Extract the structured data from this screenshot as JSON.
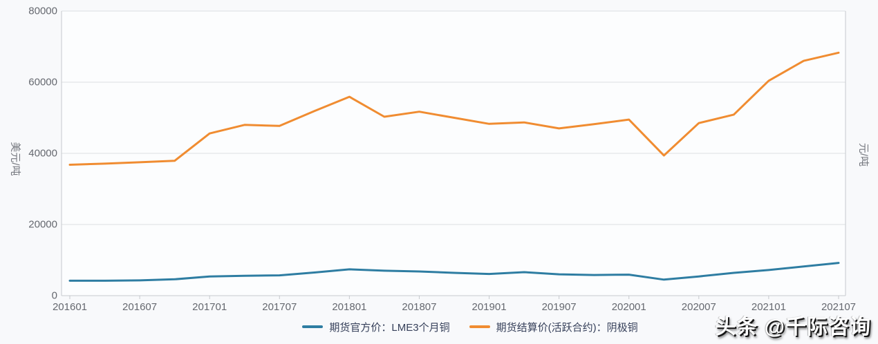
{
  "watermark": {
    "text": "头条 @千际咨询"
  },
  "colors": {
    "background": "#f8f9fb",
    "plot_background": "#fcfdfe",
    "gridline": "#dddfe3",
    "axis_line": "#c6c9cd",
    "tick_label": "#65686f",
    "legend_text": "#36405a",
    "series_blue": "#2e7da2",
    "series_orange": "#f08c31"
  },
  "chart_data": {
    "type": "line",
    "title": "",
    "x_categories": [
      "201601",
      "201604",
      "201607",
      "201610",
      "201701",
      "201704",
      "201707",
      "201710",
      "201801",
      "201804",
      "201807",
      "201810",
      "201901",
      "201904",
      "201907",
      "201910",
      "202001",
      "202004",
      "202007",
      "202010",
      "202101",
      "202104",
      "202107"
    ],
    "x_tick_labels": [
      "201601",
      "201607",
      "201701",
      "201707",
      "201801",
      "201807",
      "201901",
      "201907",
      "202001",
      "202007",
      "202101",
      "202107"
    ],
    "left_axis": {
      "name": "美元/吨",
      "min": 0,
      "max": 80000,
      "ticks": [
        0,
        20000,
        40000,
        60000,
        80000
      ]
    },
    "right_axis": {
      "name": "元/吨"
    },
    "grid": true,
    "legend_position": "bottom",
    "series": [
      {
        "name": "期货官方价：LME3个月铜",
        "color": "#2e7da2",
        "axis": "left",
        "values": [
          4200,
          4200,
          4300,
          4600,
          5400,
          5600,
          5700,
          6500,
          7400,
          7000,
          6800,
          6400,
          6100,
          6600,
          6000,
          5800,
          5900,
          4500,
          5400,
          6400,
          7200,
          8200,
          9200
        ]
      },
      {
        "name": "期货结算价(活跃合约)：阴极铜",
        "color": "#f08c31",
        "axis": "right",
        "values": [
          36800,
          37100,
          37500,
          37900,
          45600,
          48000,
          47700,
          51900,
          55900,
          50300,
          51700,
          50000,
          48300,
          48700,
          47000,
          48200,
          49500,
          39400,
          48500,
          50900,
          60400,
          66000,
          68300
        ]
      }
    ]
  }
}
